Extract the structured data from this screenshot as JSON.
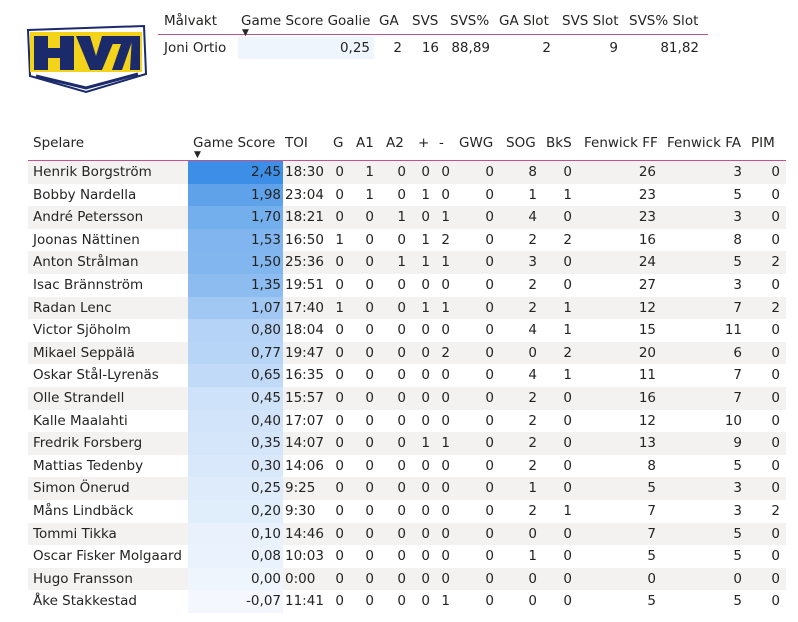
{
  "logo": {
    "text": "HV71",
    "icon": "hv71-logo-icon"
  },
  "goalie_table": {
    "headers": [
      "Målvakt",
      "Game Score Goalie",
      "GA",
      "SVS",
      "SVS%",
      "GA Slot",
      "SVS Slot",
      "SVS% Slot"
    ],
    "row": [
      "Joni Ortio",
      "0,25",
      "2",
      "16",
      "88,89",
      "2",
      "9",
      "81,82"
    ],
    "sorted_column": "Game Score Goalie"
  },
  "player_table": {
    "headers": [
      "Spelare",
      "Game Score",
      "TOI",
      "G",
      "A1",
      "A2",
      "+",
      "-",
      "GWG",
      "SOG",
      "BkS",
      "Fenwick FF",
      "Fenwick FA",
      "PIM"
    ],
    "sorted_column": "Game Score",
    "rows": [
      [
        "Henrik Borgström",
        "2,45",
        "18:30",
        "0",
        "1",
        "0",
        "0",
        "0",
        "0",
        "8",
        "0",
        "26",
        "3",
        "0"
      ],
      [
        "Bobby Nardella",
        "1,98",
        "23:04",
        "0",
        "1",
        "0",
        "1",
        "0",
        "0",
        "1",
        "1",
        "23",
        "5",
        "0"
      ],
      [
        "André Petersson",
        "1,70",
        "18:21",
        "0",
        "0",
        "1",
        "0",
        "1",
        "0",
        "4",
        "0",
        "23",
        "3",
        "0"
      ],
      [
        "Joonas Nättinen",
        "1,53",
        "16:50",
        "1",
        "0",
        "0",
        "1",
        "2",
        "0",
        "2",
        "2",
        "16",
        "8",
        "0"
      ],
      [
        "Anton Strålman",
        "1,50",
        "25:36",
        "0",
        "0",
        "1",
        "1",
        "1",
        "0",
        "3",
        "0",
        "24",
        "5",
        "2"
      ],
      [
        "Isac Brännström",
        "1,35",
        "19:51",
        "0",
        "0",
        "0",
        "0",
        "0",
        "0",
        "2",
        "0",
        "27",
        "3",
        "0"
      ],
      [
        "Radan Lenc",
        "1,07",
        "17:40",
        "1",
        "0",
        "0",
        "1",
        "1",
        "0",
        "2",
        "1",
        "12",
        "7",
        "2"
      ],
      [
        "Victor Sjöholm",
        "0,80",
        "18:04",
        "0",
        "0",
        "0",
        "0",
        "0",
        "0",
        "4",
        "1",
        "15",
        "11",
        "0"
      ],
      [
        "Mikael Seppälä",
        "0,77",
        "19:47",
        "0",
        "0",
        "0",
        "0",
        "2",
        "0",
        "0",
        "2",
        "20",
        "6",
        "0"
      ],
      [
        "Oskar Stål-Lyrenäs",
        "0,65",
        "16:35",
        "0",
        "0",
        "0",
        "0",
        "0",
        "0",
        "4",
        "1",
        "11",
        "7",
        "0"
      ],
      [
        "Olle Strandell",
        "0,45",
        "15:57",
        "0",
        "0",
        "0",
        "0",
        "0",
        "0",
        "2",
        "0",
        "16",
        "7",
        "0"
      ],
      [
        "Kalle Maalahti",
        "0,40",
        "17:07",
        "0",
        "0",
        "0",
        "0",
        "0",
        "0",
        "2",
        "0",
        "12",
        "10",
        "0"
      ],
      [
        "Fredrik Forsberg",
        "0,35",
        "14:07",
        "0",
        "0",
        "0",
        "1",
        "1",
        "0",
        "2",
        "0",
        "13",
        "9",
        "0"
      ],
      [
        "Mattias Tedenby",
        "0,30",
        "14:06",
        "0",
        "0",
        "0",
        "0",
        "0",
        "0",
        "2",
        "0",
        "8",
        "5",
        "0"
      ],
      [
        "Simon Önerud",
        "0,25",
        "9:25",
        "0",
        "0",
        "0",
        "0",
        "0",
        "0",
        "1",
        "0",
        "5",
        "3",
        "0"
      ],
      [
        "Måns Lindbäck",
        "0,20",
        "9:30",
        "0",
        "0",
        "0",
        "0",
        "0",
        "0",
        "2",
        "1",
        "7",
        "3",
        "2"
      ],
      [
        "Tommi Tikka",
        "0,10",
        "14:46",
        "0",
        "0",
        "0",
        "0",
        "0",
        "0",
        "0",
        "0",
        "7",
        "5",
        "0"
      ],
      [
        "Oscar Fisker Molgaard",
        "0,08",
        "10:03",
        "0",
        "0",
        "0",
        "0",
        "0",
        "0",
        "1",
        "0",
        "5",
        "5",
        "0"
      ],
      [
        "Hugo Fransson",
        "0,00",
        "0:00",
        "0",
        "0",
        "0",
        "0",
        "0",
        "0",
        "0",
        "0",
        "0",
        "0",
        "0"
      ],
      [
        "Åke Stakkestad",
        "-0,07",
        "11:41",
        "0",
        "0",
        "0",
        "0",
        "1",
        "0",
        "0",
        "0",
        "5",
        "5",
        "0"
      ]
    ]
  },
  "colors": {
    "accent_line": "#c0538f",
    "gs_max": "#3d8ee6",
    "gs_min": "#f4f8fe",
    "row_alt": "#f3f2f1",
    "goalie_gs_bg": "#eef5fd"
  }
}
